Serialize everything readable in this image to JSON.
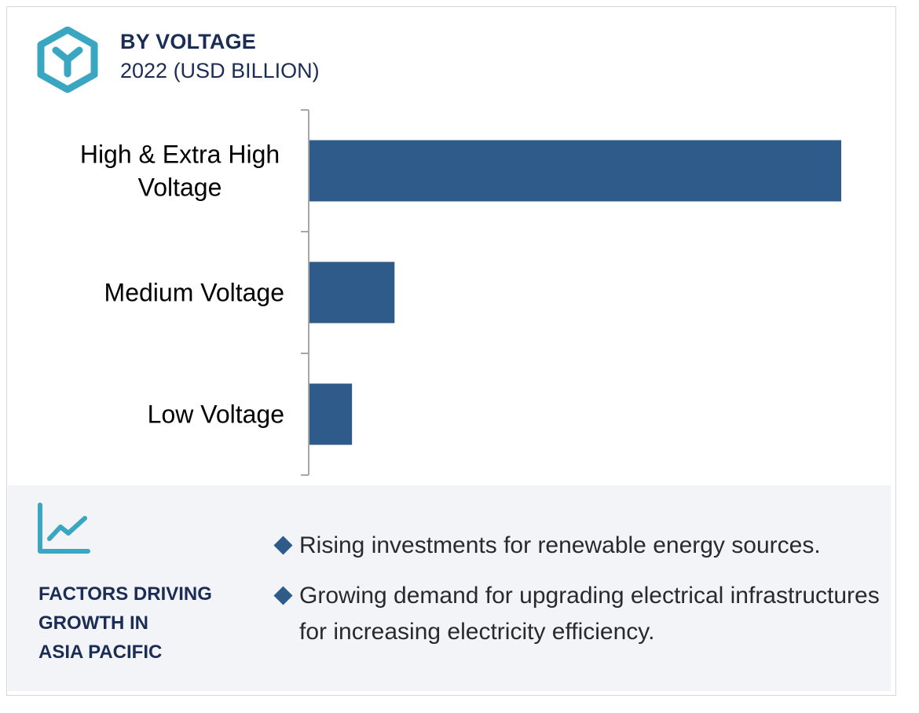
{
  "header": {
    "title": "BY VOLTAGE",
    "subtitle": "2022 (USD BILLION)",
    "logo_icon": "y-hexagon-logo-icon"
  },
  "colors": {
    "bar": "#2e5b8a",
    "title": "#1b2c55",
    "accent": "#3aa7c2",
    "panel": "#f2f4f8"
  },
  "chart_data": {
    "type": "bar",
    "orientation": "horizontal",
    "title": "BY VOLTAGE",
    "subtitle": "2022 (USD BILLION)",
    "categories": [
      [
        "High & Extra High",
        "Voltage"
      ],
      [
        "Medium Voltage"
      ],
      [
        "Low Voltage"
      ]
    ],
    "values": [
      12.5,
      2.0,
      1.0
    ],
    "xlim": [
      0,
      12.5
    ],
    "grid": false,
    "legend": "none",
    "value_axis_shown": false
  },
  "factors": {
    "icon": "trend-chart-icon",
    "title_lines": [
      "FACTORS DRIVING",
      "GROWTH IN",
      "ASIA PACIFIC"
    ],
    "bullets": [
      "Rising investments for renewable energy sources.",
      "Growing demand for upgrading electrical infrastructures for increasing electricity efficiency."
    ]
  }
}
